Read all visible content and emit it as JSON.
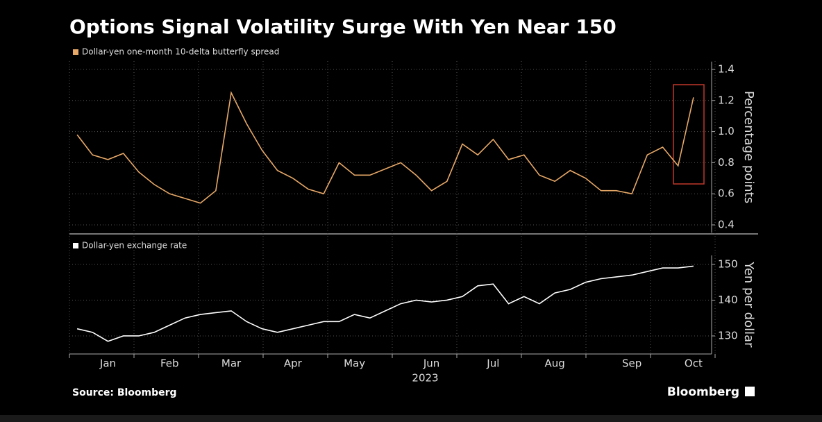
{
  "chart_data": [
    {
      "type": "line",
      "title": "Options Signal Volatility Surge With Yen Near 150",
      "ylabel": "Percentage points",
      "series": [
        {
          "name": "Dollar-yen one-month 10-delta butterfly spread",
          "color": "#e8a968",
          "values": [
            0.98,
            0.85,
            0.82,
            0.86,
            0.74,
            0.66,
            0.6,
            0.57,
            0.54,
            0.62,
            1.25,
            1.05,
            0.88,
            0.75,
            0.7,
            0.63,
            0.6,
            0.8,
            0.72,
            0.72,
            0.76,
            0.8,
            0.72,
            0.62,
            0.68,
            0.92,
            0.85,
            0.95,
            0.82,
            0.85,
            0.72,
            0.68,
            0.75,
            0.7,
            0.62,
            0.62,
            0.6,
            0.85,
            0.9,
            0.78,
            1.22
          ]
        }
      ],
      "ylim": [
        0.35,
        1.45
      ],
      "yticks": [
        0.4,
        0.6,
        0.8,
        {
          "value": 1,
          "label": "1.0"
        },
        1.2,
        1.4
      ],
      "grid": true
    },
    {
      "type": "line",
      "ylabel": "Yen per dollar",
      "xlabel": "2023",
      "categories": [
        null,
        null,
        "Jan",
        null,
        null,
        null,
        "Feb",
        null,
        null,
        null,
        "Mar",
        null,
        null,
        null,
        "Apr",
        null,
        null,
        null,
        "May",
        null,
        null,
        null,
        null,
        "Jun",
        null,
        null,
        null,
        "Jul",
        null,
        null,
        null,
        "Aug",
        null,
        null,
        null,
        null,
        "Sep",
        null,
        null,
        null,
        "Oct"
      ],
      "series": [
        {
          "name": "Dollar-yen exchange rate",
          "color": "#ffffff",
          "values": [
            132,
            131,
            128.5,
            130,
            130,
            131,
            133,
            135,
            136,
            136.5,
            137,
            134,
            132,
            131,
            132,
            133,
            134,
            134,
            136,
            135,
            137,
            139,
            140,
            139.5,
            140,
            141,
            144,
            144.5,
            139,
            141,
            139,
            142,
            143,
            145,
            146,
            146.5,
            147,
            148,
            149,
            149,
            149.5
          ]
        }
      ],
      "ylim": [
        125,
        152.5
      ],
      "yticks": [
        130,
        140,
        150
      ],
      "grid": true
    }
  ],
  "footer": {
    "source": "Source: Bloomberg",
    "brand": "Bloomberg"
  }
}
